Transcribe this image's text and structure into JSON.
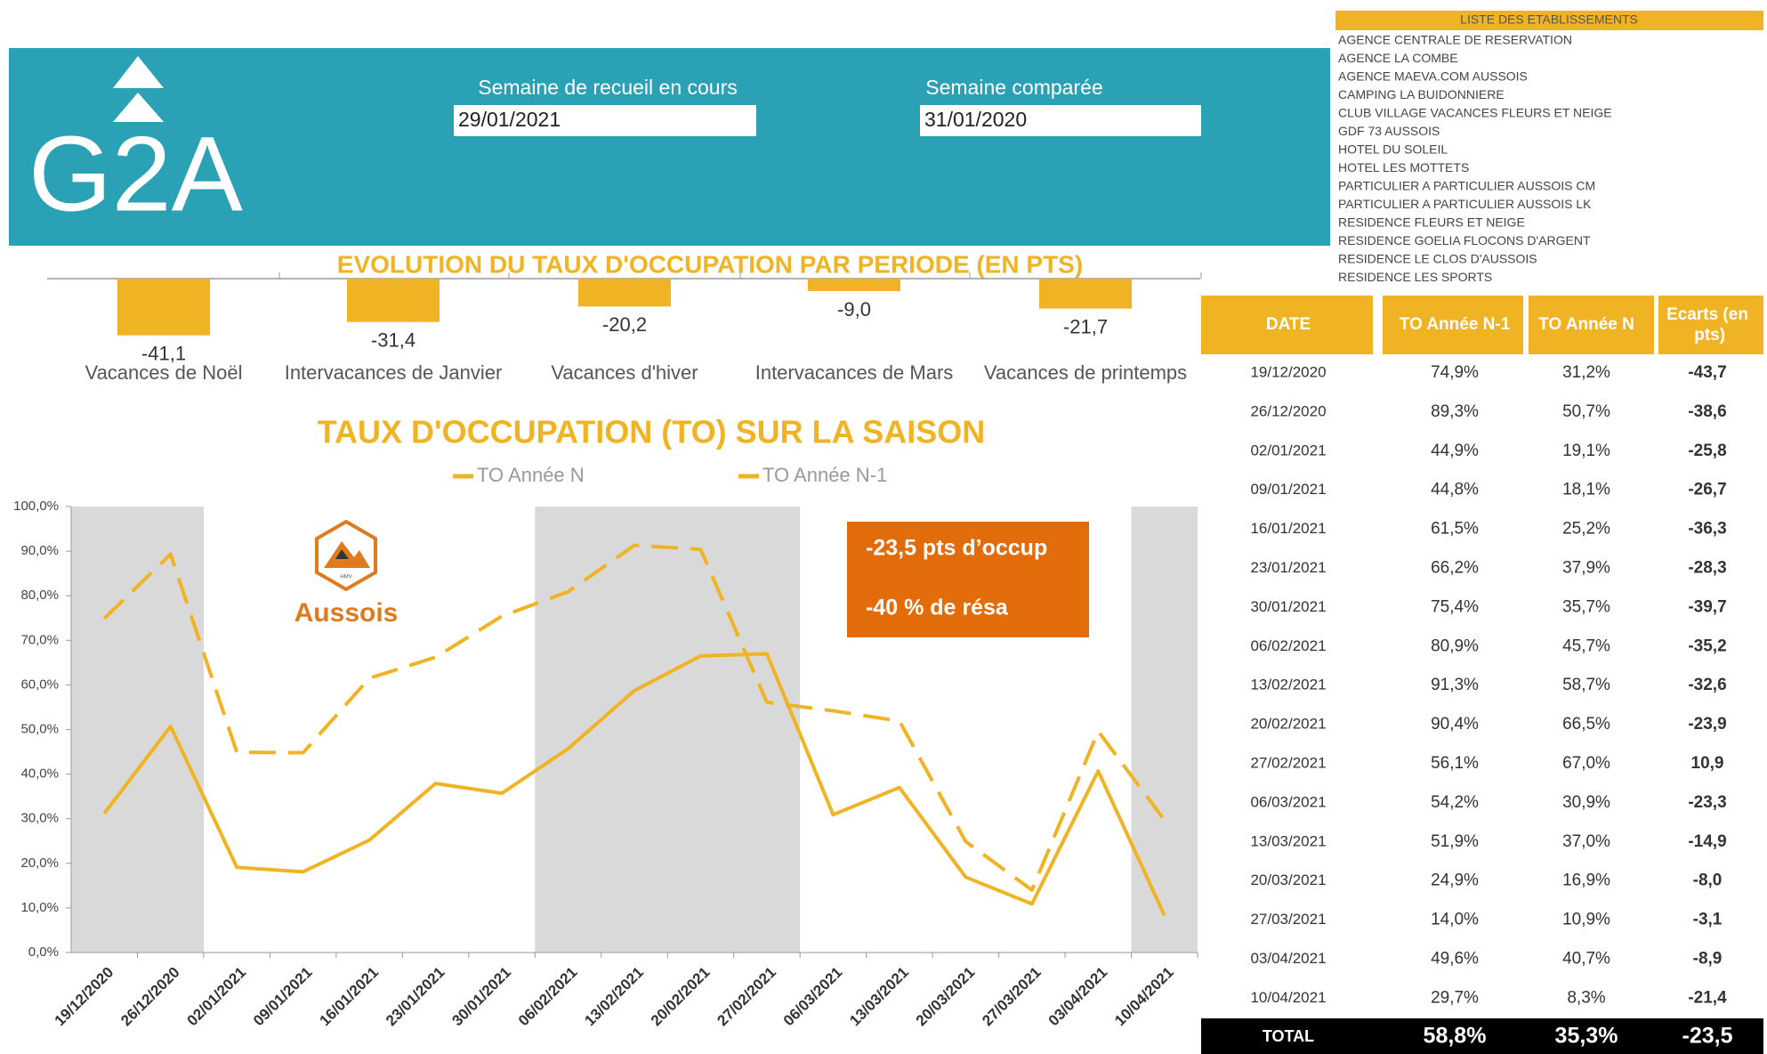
{
  "header": {
    "logo": "G2A",
    "week_label": "Semaine de recueil en cours",
    "week": "29/01/2021",
    "compared_label": "Semaine comparée",
    "compared": "31/01/2020"
  },
  "establishments": {
    "title": "LISTE DES ETABLISSEMENTS",
    "items": [
      "AGENCE CENTRALE DE RESERVATION",
      "AGENCE LA COMBE",
      "AGENCE MAEVA.COM AUSSOIS",
      "CAMPING LA BUIDONNIERE",
      "CLUB VILLAGE VACANCES FLEURS ET NEIGE",
      "GDF 73 AUSSOIS",
      "HOTEL DU SOLEIL",
      "HOTEL LES MOTTETS",
      "PARTICULIER A PARTICULIER AUSSOIS CM",
      "PARTICULIER A PARTICULIER AUSSOIS LK",
      "RESIDENCE FLEURS ET NEIGE",
      "RESIDENCE GOELIA FLOCONS D'ARGENT",
      "RESIDENCE LE CLOS D'AUSSOIS",
      "RESIDENCE LES SPORTS"
    ]
  },
  "chart_data": [
    {
      "type": "bar",
      "title": "EVOLUTION DU TAUX D'OCCUPATION PAR PERIODE (EN PTS)",
      "categories": [
        "Vacances de Noël",
        "Intervacances de Janvier",
        "Vacances d'hiver",
        "Intervacances de Mars",
        "Vacances de printemps"
      ],
      "values": [
        -41.1,
        -31.4,
        -20.2,
        -9.0,
        -21.7
      ],
      "value_labels": [
        "-41,1",
        "-31,4",
        "-20,2",
        "-9,0",
        "-21,7"
      ],
      "color": "#f0b323"
    },
    {
      "type": "line",
      "title": "TAUX D'OCCUPATION (TO) SUR LA SAISON",
      "x": [
        "19/12/2020",
        "26/12/2020",
        "02/01/2021",
        "09/01/2021",
        "16/01/2021",
        "23/01/2021",
        "30/01/2021",
        "06/02/2021",
        "13/02/2021",
        "20/02/2021",
        "27/02/2021",
        "06/03/2021",
        "13/03/2021",
        "20/03/2021",
        "27/03/2021",
        "03/04/2021",
        "10/04/2021"
      ],
      "series": [
        {
          "name": "TO Année N",
          "color": "#f0b323",
          "values": [
            31.2,
            50.7,
            19.1,
            18.1,
            25.2,
            37.9,
            35.7,
            45.7,
            58.7,
            66.5,
            67.0,
            30.9,
            37.0,
            16.9,
            10.9,
            40.7,
            8.3
          ]
        },
        {
          "name": "TO Année N-1",
          "color": "#f0b323",
          "dashed": true,
          "values": [
            74.9,
            89.3,
            44.9,
            44.8,
            61.5,
            66.2,
            75.4,
            80.9,
            91.3,
            90.4,
            56.1,
            54.2,
            51.9,
            24.9,
            14.0,
            49.6,
            29.7
          ]
        }
      ],
      "ylim": [
        0,
        100
      ],
      "yticks": [
        {
          "value": 0,
          "label": "0,0%"
        },
        {
          "value": 10,
          "label": "10,0%"
        },
        {
          "value": 20,
          "label": "20,0%"
        },
        {
          "value": 30,
          "label": "30,0%"
        },
        {
          "value": 40,
          "label": "40,0%"
        },
        {
          "value": 50,
          "label": "50,0%"
        },
        {
          "value": 60,
          "label": "60,0%"
        },
        {
          "value": 70,
          "label": "70,0%"
        },
        {
          "value": 80,
          "label": "80,0%"
        },
        {
          "value": 90,
          "label": "90,0%"
        },
        {
          "value": 100,
          "label": "100,0%"
        }
      ]
    }
  ],
  "annotation": {
    "logo_badge": "HMV",
    "logo_text": "Aussois",
    "lines": [
      "-23,5 pts d’occup",
      "-40 % de résa"
    ]
  },
  "table": {
    "columns": [
      "DATE",
      "TO Année N-1",
      "TO Année N",
      "Ecarts (en pts)"
    ],
    "rows": [
      [
        "19/12/2020",
        "74,9%",
        "31,2%",
        "-43,7"
      ],
      [
        "26/12/2020",
        "89,3%",
        "50,7%",
        "-38,6"
      ],
      [
        "02/01/2021",
        "44,9%",
        "19,1%",
        "-25,8"
      ],
      [
        "09/01/2021",
        "44,8%",
        "18,1%",
        "-26,7"
      ],
      [
        "16/01/2021",
        "61,5%",
        "25,2%",
        "-36,3"
      ],
      [
        "23/01/2021",
        "66,2%",
        "37,9%",
        "-28,3"
      ],
      [
        "30/01/2021",
        "75,4%",
        "35,7%",
        "-39,7"
      ],
      [
        "06/02/2021",
        "80,9%",
        "45,7%",
        "-35,2"
      ],
      [
        "13/02/2021",
        "91,3%",
        "58,7%",
        "-32,6"
      ],
      [
        "20/02/2021",
        "90,4%",
        "66,5%",
        "-23,9"
      ],
      [
        "27/02/2021",
        "56,1%",
        "67,0%",
        "10,9"
      ],
      [
        "06/03/2021",
        "54,2%",
        "30,9%",
        "-23,3"
      ],
      [
        "13/03/2021",
        "51,9%",
        "37,0%",
        "-14,9"
      ],
      [
        "20/03/2021",
        "24,9%",
        "16,9%",
        "-8,0"
      ],
      [
        "27/03/2021",
        "14,0%",
        "10,9%",
        "-3,1"
      ],
      [
        "03/04/2021",
        "49,6%",
        "40,7%",
        "-8,9"
      ],
      [
        "10/04/2021",
        "29,7%",
        "8,3%",
        "-21,4"
      ]
    ],
    "total": [
      "TOTAL",
      "58,8%",
      "35,3%",
      "-23,5"
    ]
  }
}
